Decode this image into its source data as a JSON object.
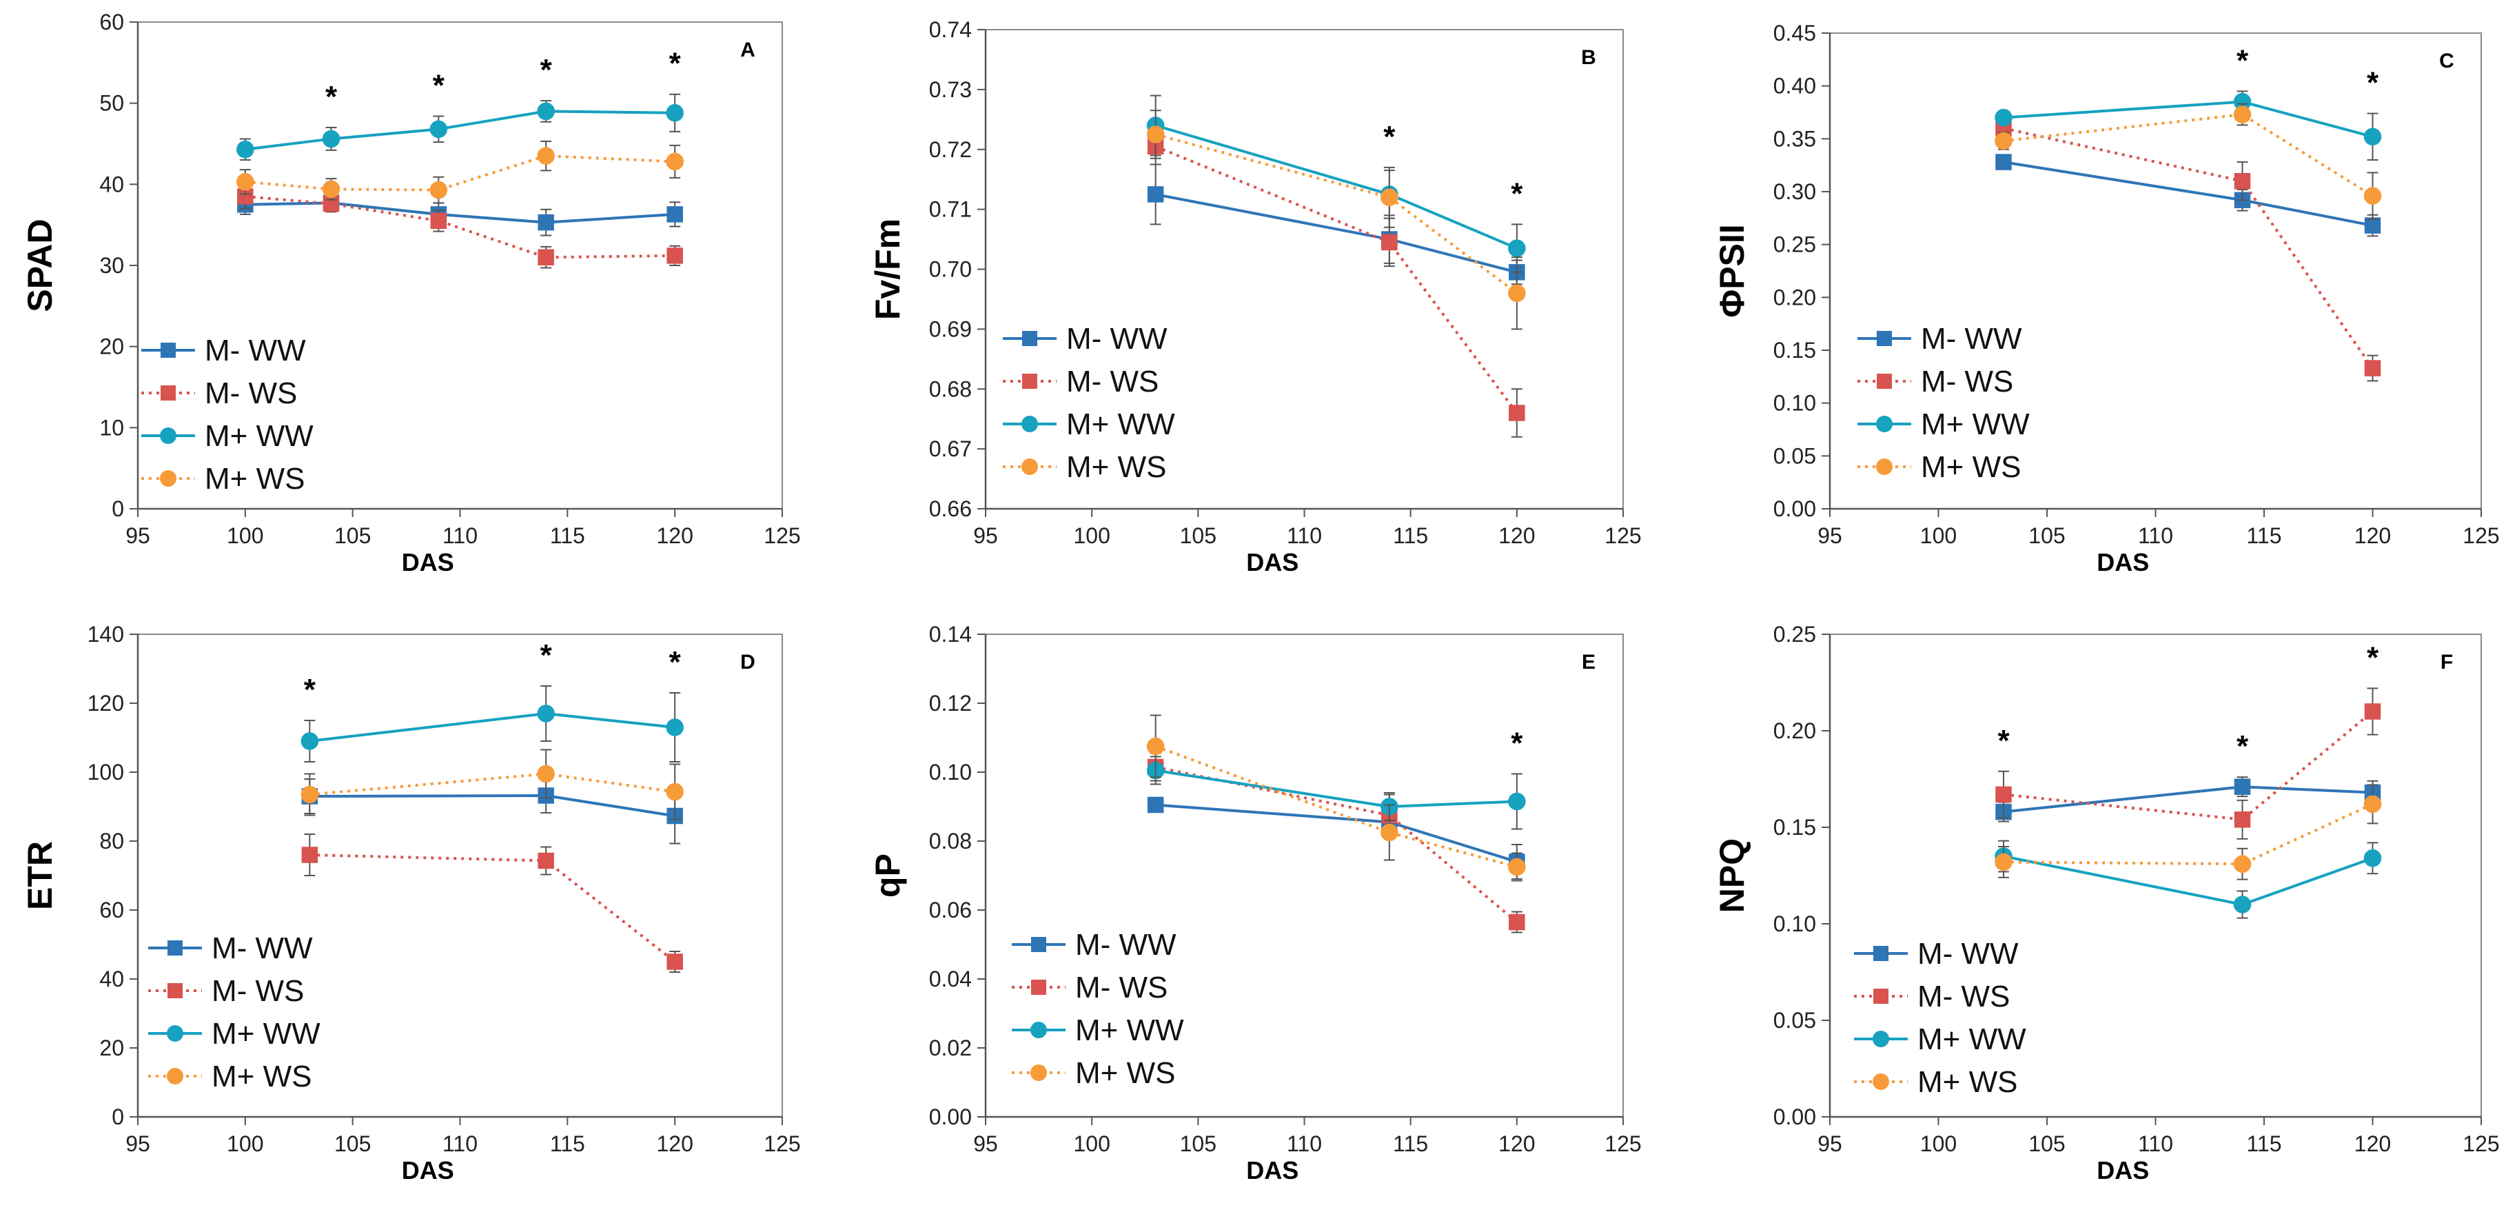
{
  "colors": {
    "M- WW": "#2E75B6",
    "M- WS": "#D9534F",
    "M+ WW": "#17A2C0",
    "M+ WS": "#F79A38"
  },
  "chart_data": [
    {
      "type": "line",
      "panel": "A",
      "ylabel": "SPAD",
      "xlabel": "DAS",
      "xlim": [
        95,
        125
      ],
      "ylim": [
        0,
        60
      ],
      "ystep": 10,
      "xstep": 5,
      "ydecimals": 0,
      "x": [
        100,
        104,
        109,
        114,
        120
      ],
      "series": [
        {
          "name": "M- WW",
          "values": [
            37.5,
            37.7,
            36.3,
            35.3,
            36.3
          ],
          "errors": [
            1.2,
            1.0,
            1.4,
            1.6,
            1.5
          ]
        },
        {
          "name": "M- WS",
          "values": [
            38.5,
            37.6,
            35.5,
            31.0,
            31.2
          ],
          "errors": [
            1.5,
            1.0,
            1.3,
            1.3,
            1.2
          ]
        },
        {
          "name": "M+ WW",
          "values": [
            44.3,
            45.6,
            46.8,
            49.0,
            48.8
          ],
          "errors": [
            1.3,
            1.4,
            1.6,
            1.3,
            2.3
          ]
        },
        {
          "name": "M+ WS",
          "values": [
            40.3,
            39.4,
            39.3,
            43.5,
            42.8
          ],
          "errors": [
            1.5,
            1.3,
            1.6,
            1.8,
            2.0
          ]
        }
      ],
      "significant_x": [
        104,
        109,
        114,
        120
      ],
      "legend": "lower-left"
    },
    {
      "type": "line",
      "panel": "B",
      "ylabel": "Fv/Fm",
      "xlabel": "DAS",
      "xlim": [
        95,
        125
      ],
      "ylim": [
        0.66,
        0.74
      ],
      "ystep": 0.01,
      "xstep": 5,
      "ydecimals": 2,
      "x": [
        103,
        114,
        120
      ],
      "series": [
        {
          "name": "M- WW",
          "values": [
            0.7125,
            0.705,
            0.6995
          ],
          "errors": [
            0.005,
            0.004,
            0.002
          ]
        },
        {
          "name": "M- WS",
          "values": [
            0.7205,
            0.7045,
            0.676
          ],
          "errors": [
            0.003,
            0.004,
            0.004
          ]
        },
        {
          "name": "M+ WW",
          "values": [
            0.724,
            0.7125,
            0.7035
          ],
          "errors": [
            0.005,
            0.004,
            0.004
          ]
        },
        {
          "name": "M+ WS",
          "values": [
            0.7225,
            0.712,
            0.696
          ],
          "errors": [
            0.004,
            0.005,
            0.006
          ]
        }
      ],
      "significant_x": [
        114,
        120
      ],
      "legend": "lower-left"
    },
    {
      "type": "line",
      "panel": "C",
      "ylabel": "ΦPSII",
      "xlabel": "DAS",
      "xlim": [
        95,
        125
      ],
      "ylim": [
        0,
        0.45
      ],
      "ystep": 0.05,
      "xstep": 5,
      "ydecimals": 2,
      "x": [
        103,
        114,
        120
      ],
      "series": [
        {
          "name": "M- WW",
          "values": [
            0.328,
            0.292,
            0.268
          ],
          "errors": [
            0.006,
            0.01,
            0.01
          ]
        },
        {
          "name": "M- WS",
          "values": [
            0.36,
            0.31,
            0.133
          ],
          "errors": [
            0.008,
            0.018,
            0.012
          ]
        },
        {
          "name": "M+ WW",
          "values": [
            0.37,
            0.385,
            0.352
          ],
          "errors": [
            0.006,
            0.01,
            0.022
          ]
        },
        {
          "name": "M+ WS",
          "values": [
            0.348,
            0.373,
            0.296
          ],
          "errors": [
            0.008,
            0.01,
            0.022
          ]
        }
      ],
      "significant_x": [
        114,
        120
      ],
      "legend": "lower-left"
    },
    {
      "type": "line",
      "panel": "D",
      "ylabel": "ETR",
      "xlabel": "DAS",
      "xlim": [
        95,
        125
      ],
      "ylim": [
        0,
        140
      ],
      "ystep": 20,
      "xstep": 5,
      "ydecimals": 0,
      "x": [
        103,
        114,
        120
      ],
      "series": [
        {
          "name": "M- WW",
          "values": [
            93,
            93.2,
            87.3
          ],
          "errors": [
            5,
            5,
            8
          ]
        },
        {
          "name": "M- WS",
          "values": [
            76,
            74.3,
            45
          ],
          "errors": [
            6,
            4,
            3
          ]
        },
        {
          "name": "M+ WW",
          "values": [
            109,
            117,
            113
          ],
          "errors": [
            6,
            8,
            10
          ]
        },
        {
          "name": "M+ WS",
          "values": [
            93.5,
            99.5,
            94.3
          ],
          "errors": [
            6,
            7,
            8
          ]
        }
      ],
      "significant_x": [
        103,
        114,
        120
      ],
      "legend": "lower-left"
    },
    {
      "type": "line",
      "panel": "E",
      "ylabel": "qP",
      "xlabel": "DAS",
      "xlim": [
        95,
        125
      ],
      "ylim": [
        0,
        0.14
      ],
      "ystep": 0.02,
      "xstep": 5,
      "ydecimals": 2,
      "x": [
        103,
        114,
        120
      ],
      "series": [
        {
          "name": "M- WW",
          "values": [
            0.0905,
            0.0855,
            0.074
          ],
          "errors": [
            0.002,
            0.004,
            0.005
          ]
        },
        {
          "name": "M- WS",
          "values": [
            0.1015,
            0.0875,
            0.0565
          ],
          "errors": [
            0.004,
            0.006,
            0.003
          ]
        },
        {
          "name": "M+ WW",
          "values": [
            0.1005,
            0.09,
            0.0915
          ],
          "errors": [
            0.004,
            0.004,
            0.008
          ]
        },
        {
          "name": "M+ WS",
          "values": [
            0.1075,
            0.0825,
            0.0725
          ],
          "errors": [
            0.009,
            0.008,
            0.004
          ]
        }
      ],
      "significant_x": [
        120
      ],
      "legend": "lower-left"
    },
    {
      "type": "line",
      "panel": "F",
      "ylabel": "NPQ",
      "xlabel": "DAS",
      "xlim": [
        95,
        125
      ],
      "ylim": [
        0,
        0.25
      ],
      "ystep": 0.05,
      "xstep": 5,
      "ydecimals": 2,
      "x": [
        103,
        114,
        120
      ],
      "series": [
        {
          "name": "M- WW",
          "values": [
            0.158,
            0.171,
            0.168
          ],
          "errors": [
            0.005,
            0.005,
            0.006
          ]
        },
        {
          "name": "M- WS",
          "values": [
            0.167,
            0.154,
            0.21
          ],
          "errors": [
            0.012,
            0.01,
            0.012
          ]
        },
        {
          "name": "M+ WW",
          "values": [
            0.135,
            0.11,
            0.134
          ],
          "errors": [
            0.008,
            0.007,
            0.008
          ]
        },
        {
          "name": "M+ WS",
          "values": [
            0.132,
            0.131,
            0.162
          ],
          "errors": [
            0.008,
            0.008,
            0.01
          ]
        }
      ],
      "significant_x": [
        103,
        114,
        120
      ],
      "legend": "lower-left"
    }
  ]
}
